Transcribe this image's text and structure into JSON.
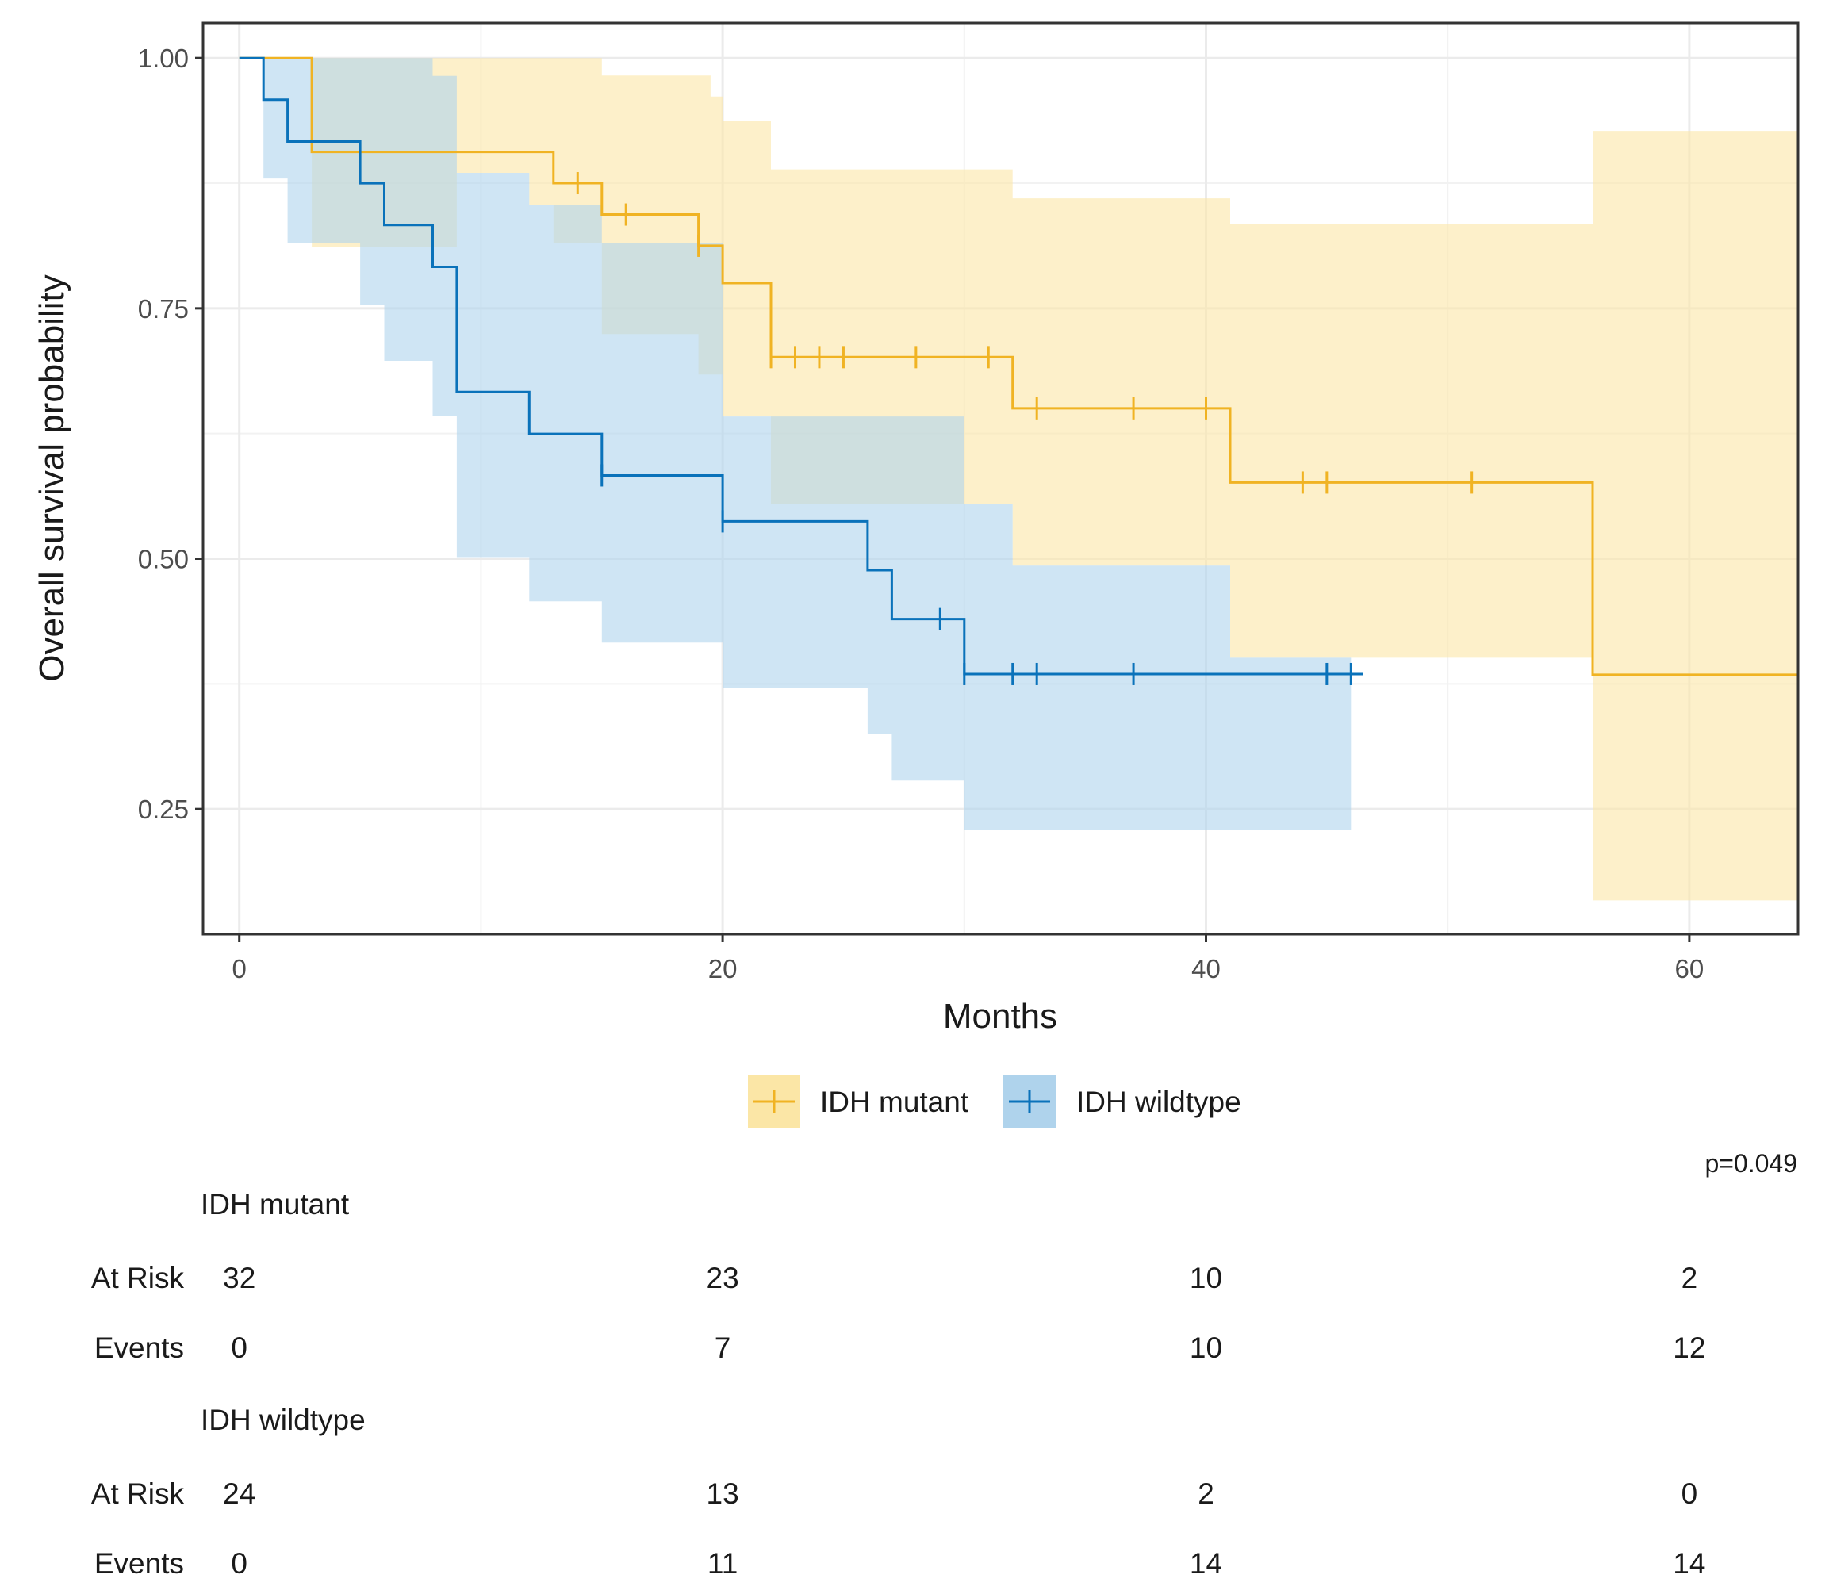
{
  "chart_data": {
    "type": "line",
    "subtype": "kaplan-meier",
    "xlabel": "Months",
    "ylabel": "Overall survival probability",
    "xlim": [
      -1.5,
      64.5
    ],
    "ylim": [
      0.125,
      1.035
    ],
    "xticks": [
      0,
      20,
      40,
      60
    ],
    "xtick_labels": [
      "0",
      "20",
      "40",
      "60"
    ],
    "yticks": [
      0.25,
      0.5,
      0.75,
      1.0
    ],
    "ytick_labels": [
      "0.25",
      "0.50",
      "0.75",
      "1.00"
    ],
    "grid": true,
    "legend_position": "bottom",
    "p_value": "p=0.049",
    "series": [
      {
        "name": "IDH mutant",
        "color": "#F0B323",
        "band_color": "#FBE6A6",
        "steps": [
          [
            0,
            1.0
          ],
          [
            3,
            0.9062
          ],
          [
            13,
            0.875
          ],
          [
            15,
            0.8437
          ],
          [
            19,
            0.8125
          ],
          [
            20,
            0.7752
          ],
          [
            22,
            0.7013
          ],
          [
            32,
            0.6502
          ],
          [
            41,
            0.5761
          ],
          [
            56,
            0.3841
          ],
          [
            64.5,
            0.3841
          ]
        ],
        "censor_marks": [
          [
            14,
            0.875
          ],
          [
            16,
            0.8437
          ],
          [
            19,
            0.8125
          ],
          [
            22,
            0.7013
          ],
          [
            23,
            0.7013
          ],
          [
            24,
            0.7013
          ],
          [
            25,
            0.7013
          ],
          [
            28,
            0.7013
          ],
          [
            31,
            0.7013
          ],
          [
            33,
            0.6502
          ],
          [
            37,
            0.6502
          ],
          [
            40,
            0.6502
          ],
          [
            44,
            0.5761
          ],
          [
            45,
            0.5761
          ],
          [
            51,
            0.5761
          ]
        ],
        "ci_steps": [
          [
            0,
            1.0,
            1.0
          ],
          [
            3,
            1.0,
            0.8113
          ],
          [
            8,
            1.0,
            0.8113
          ],
          [
            9,
            1.0,
            0.8853
          ],
          [
            12,
            1.0,
            0.8536
          ],
          [
            13,
            1.0,
            0.8156
          ],
          [
            15,
            0.9825,
            0.7244
          ],
          [
            19,
            0.9825,
            0.6839
          ],
          [
            19.5,
            0.9615,
            0.6839
          ],
          [
            20,
            0.9371,
            0.6421
          ],
          [
            22,
            0.8888,
            0.5549
          ],
          [
            32,
            0.8599,
            0.4931
          ],
          [
            41,
            0.8341,
            0.4011
          ],
          [
            46,
            0.8341,
            0.4011
          ],
          [
            56,
            0.9272,
            0.1587
          ],
          [
            64.5,
            0.9272,
            0.1587
          ]
        ]
      },
      {
        "name": "IDH wildtype",
        "color": "#0A72BA",
        "band_color": "#AFD3EC",
        "steps": [
          [
            0,
            1.0
          ],
          [
            1,
            0.9583
          ],
          [
            2,
            0.9166
          ],
          [
            5,
            0.8749
          ],
          [
            6,
            0.8332
          ],
          [
            8,
            0.7915
          ],
          [
            9,
            0.6665
          ],
          [
            12,
            0.6247
          ],
          [
            15,
            0.5832
          ],
          [
            20,
            0.5373
          ],
          [
            26,
            0.4885
          ],
          [
            27,
            0.4397
          ],
          [
            30,
            0.3848
          ],
          [
            46.5,
            0.3848
          ]
        ],
        "censor_marks": [
          [
            15,
            0.5832
          ],
          [
            20,
            0.5373
          ],
          [
            29,
            0.4397
          ],
          [
            30,
            0.3848
          ],
          [
            32,
            0.3848
          ],
          [
            33,
            0.3848
          ],
          [
            37,
            0.3848
          ],
          [
            45,
            0.3848
          ],
          [
            46,
            0.3848
          ]
        ],
        "ci_steps": [
          [
            0,
            1.0,
            1.0
          ],
          [
            1,
            1.0,
            0.8797
          ],
          [
            2,
            1.0,
            0.8155
          ],
          [
            5,
            1.0,
            0.7535
          ],
          [
            6,
            1.0,
            0.6976
          ],
          [
            8,
            0.9822,
            0.6429
          ],
          [
            9,
            0.8853,
            0.5016
          ],
          [
            12,
            0.8529,
            0.4574
          ],
          [
            15,
            0.8156,
            0.4162
          ],
          [
            20,
            0.6421,
            0.3713
          ],
          [
            26,
            0.6421,
            0.3248
          ],
          [
            27,
            0.6421,
            0.2785
          ],
          [
            30,
            0.5549,
            0.2294
          ],
          [
            32,
            0.4931,
            0.2294
          ],
          [
            41,
            0.4011,
            0.2294
          ],
          [
            46,
            0.4011,
            0.2294
          ]
        ]
      }
    ],
    "risk_table": {
      "time_points": [
        0,
        20,
        40,
        60
      ],
      "groups": [
        {
          "name": "IDH mutant",
          "at_risk_label": "At Risk",
          "events_label": "Events",
          "at_risk": [
            "32",
            "23",
            "10",
            "2"
          ],
          "events": [
            "0",
            "7",
            "10",
            "12"
          ]
        },
        {
          "name": "IDH wildtype",
          "at_risk_label": "At Risk",
          "events_label": "Events",
          "at_risk": [
            "24",
            "13",
            "2",
            "0"
          ],
          "events": [
            "0",
            "11",
            "14",
            "14"
          ]
        }
      ]
    }
  }
}
